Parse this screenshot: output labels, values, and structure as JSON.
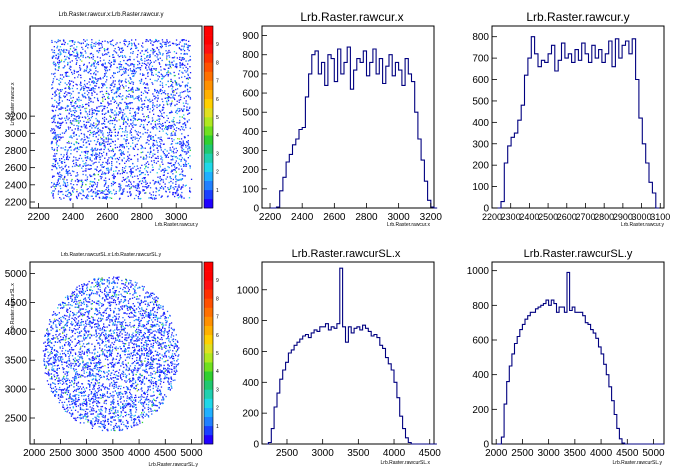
{
  "chart_data": [
    {
      "type": "heatmap",
      "title": "Lrb.Raster.rawcur.x:Lrb.Raster.rawcur.y",
      "xlabel": "Lrb.Raster.rawcur.y",
      "ylabel": "Lrb.Raster.rawcur.x",
      "xlim": [
        2150,
        3150
      ],
      "ylim": [
        2130,
        4250
      ],
      "x_ticks": [
        2200,
        2400,
        2600,
        2800,
        3000
      ],
      "y_ticks": [
        2200,
        2400,
        2600,
        2800,
        3000,
        3200
      ],
      "y_tick_labels": [
        "2200",
        "2400",
        "2600",
        "2800",
        "3000",
        "3200"
      ],
      "region": {
        "shape": "rect",
        "x": [
          2270,
          3080
        ],
        "y": [
          2240,
          4100
        ]
      },
      "colorbar": {
        "ticks": [
          1,
          2,
          3,
          4,
          5,
          6,
          7,
          8,
          9
        ],
        "range": [
          0,
          10
        ]
      },
      "grid": false
    },
    {
      "type": "histogram",
      "title": "Lrb.Raster.rawcur.x",
      "xlabel": "Lrb.Raster.rawcur.x",
      "xlim": [
        2150,
        3220
      ],
      "ylim": [
        0,
        950
      ],
      "x_ticks": [
        2200,
        2400,
        2600,
        2800,
        3000,
        3200
      ],
      "y_ticks": [
        0,
        100,
        200,
        300,
        400,
        500,
        600,
        700,
        800,
        900
      ],
      "bins": {
        "start": 2200,
        "width": 20
      },
      "values": [
        0,
        0,
        5,
        90,
        160,
        240,
        280,
        330,
        360,
        410,
        420,
        580,
        700,
        800,
        820,
        700,
        760,
        640,
        800,
        780,
        660,
        830,
        700,
        760,
        840,
        620,
        720,
        780,
        760,
        820,
        690,
        760,
        830,
        700,
        780,
        650,
        740,
        800,
        690,
        760,
        720,
        640,
        780,
        700,
        660,
        500,
        360,
        250,
        140,
        40,
        5,
        0
      ]
    },
    {
      "type": "histogram",
      "title": "Lrb.Raster.rawcur.y",
      "xlabel": "Lrb.Raster.rawcur.y",
      "xlim": [
        2200,
        3120
      ],
      "ylim": [
        0,
        850
      ],
      "x_ticks": [
        2200,
        2300,
        2400,
        2500,
        2600,
        2700,
        2800,
        2900,
        3000,
        3100
      ],
      "y_ticks": [
        0,
        100,
        200,
        300,
        400,
        500,
        600,
        700,
        800
      ],
      "bins": {
        "start": 2230,
        "width": 18
      },
      "values": [
        0,
        30,
        210,
        290,
        330,
        350,
        410,
        480,
        620,
        700,
        800,
        720,
        660,
        690,
        680,
        720,
        760,
        640,
        690,
        770,
        700,
        720,
        680,
        740,
        690,
        770,
        720,
        680,
        760,
        700,
        740,
        680,
        720,
        780,
        660,
        790,
        700,
        760,
        780,
        720,
        790,
        600,
        420,
        300,
        210,
        120,
        70,
        0
      ]
    },
    {
      "type": "heatmap",
      "title": "Lrb.Raster.rawcurSL.x:Lrb.Raster.rawcurSL.y",
      "xlabel": "Lrb.Raster.rawcurSL.y",
      "ylabel": "Lrb.Raster.rawcurSL.x",
      "xlim": [
        1920,
        5200
      ],
      "ylim": [
        2050,
        5200
      ],
      "x_ticks": [
        2000,
        2500,
        3000,
        3500,
        4000,
        4500,
        5000
      ],
      "y_ticks": [
        2500,
        3000,
        3500,
        4000,
        4500,
        5000
      ],
      "y_tick_labels": [
        "2500",
        "3000",
        "3500",
        "4000",
        "4500",
        "5000"
      ],
      "region": {
        "shape": "circle",
        "center": [
          3450,
          3620
        ],
        "rx": 1300,
        "ry": 1340
      },
      "colorbar": {
        "ticks": [
          1,
          2,
          3,
          4,
          5,
          6,
          7,
          8,
          9
        ],
        "range": [
          0,
          10
        ]
      },
      "grid": false
    },
    {
      "type": "histogram",
      "title": "Lrb.Raster.rawcurSL.x",
      "xlabel": "Lrb.Raster.rawcurSL.x",
      "xlim": [
        2150,
        4560
      ],
      "ylim": [
        0,
        1180
      ],
      "x_ticks": [
        2500,
        3000,
        3500,
        4000,
        4500
      ],
      "y_ticks": [
        0,
        200,
        400,
        600,
        800,
        1000
      ],
      "bins": {
        "start": 2200,
        "width": 40
      },
      "values": [
        0,
        10,
        100,
        240,
        330,
        420,
        480,
        530,
        590,
        610,
        640,
        660,
        680,
        700,
        710,
        690,
        720,
        740,
        730,
        760,
        760,
        780,
        740,
        760,
        750,
        780,
        1140,
        760,
        660,
        760,
        720,
        750,
        760,
        740,
        770,
        750,
        730,
        700,
        710,
        690,
        640,
        620,
        560,
        520,
        480,
        400,
        300,
        180,
        100,
        40,
        10,
        0,
        0,
        0,
        0,
        0,
        0,
        0,
        0,
        0
      ]
    },
    {
      "type": "histogram",
      "title": "Lrb.Raster.rawcurSL.y",
      "xlabel": "Lrb.Raster.rawcurSL.y",
      "xlim": [
        1920,
        5200
      ],
      "ylim": [
        0,
        1050
      ],
      "x_ticks": [
        2000,
        2500,
        3000,
        3500,
        4000,
        4500,
        5000
      ],
      "y_ticks": [
        0,
        200,
        400,
        600,
        800,
        1000
      ],
      "bins": {
        "start": 2000,
        "width": 50
      },
      "values": [
        0,
        0,
        40,
        230,
        360,
        450,
        520,
        580,
        620,
        660,
        690,
        720,
        740,
        760,
        760,
        780,
        790,
        800,
        810,
        830,
        800,
        830,
        810,
        760,
        790,
        790,
        760,
        990,
        770,
        790,
        760,
        760,
        760,
        740,
        700,
        690,
        660,
        640,
        610,
        560,
        520,
        460,
        400,
        330,
        250,
        170,
        90,
        30,
        5,
        0,
        0,
        0,
        0,
        0,
        0,
        0,
        0,
        0,
        0,
        0,
        0,
        0,
        0,
        0
      ]
    }
  ]
}
